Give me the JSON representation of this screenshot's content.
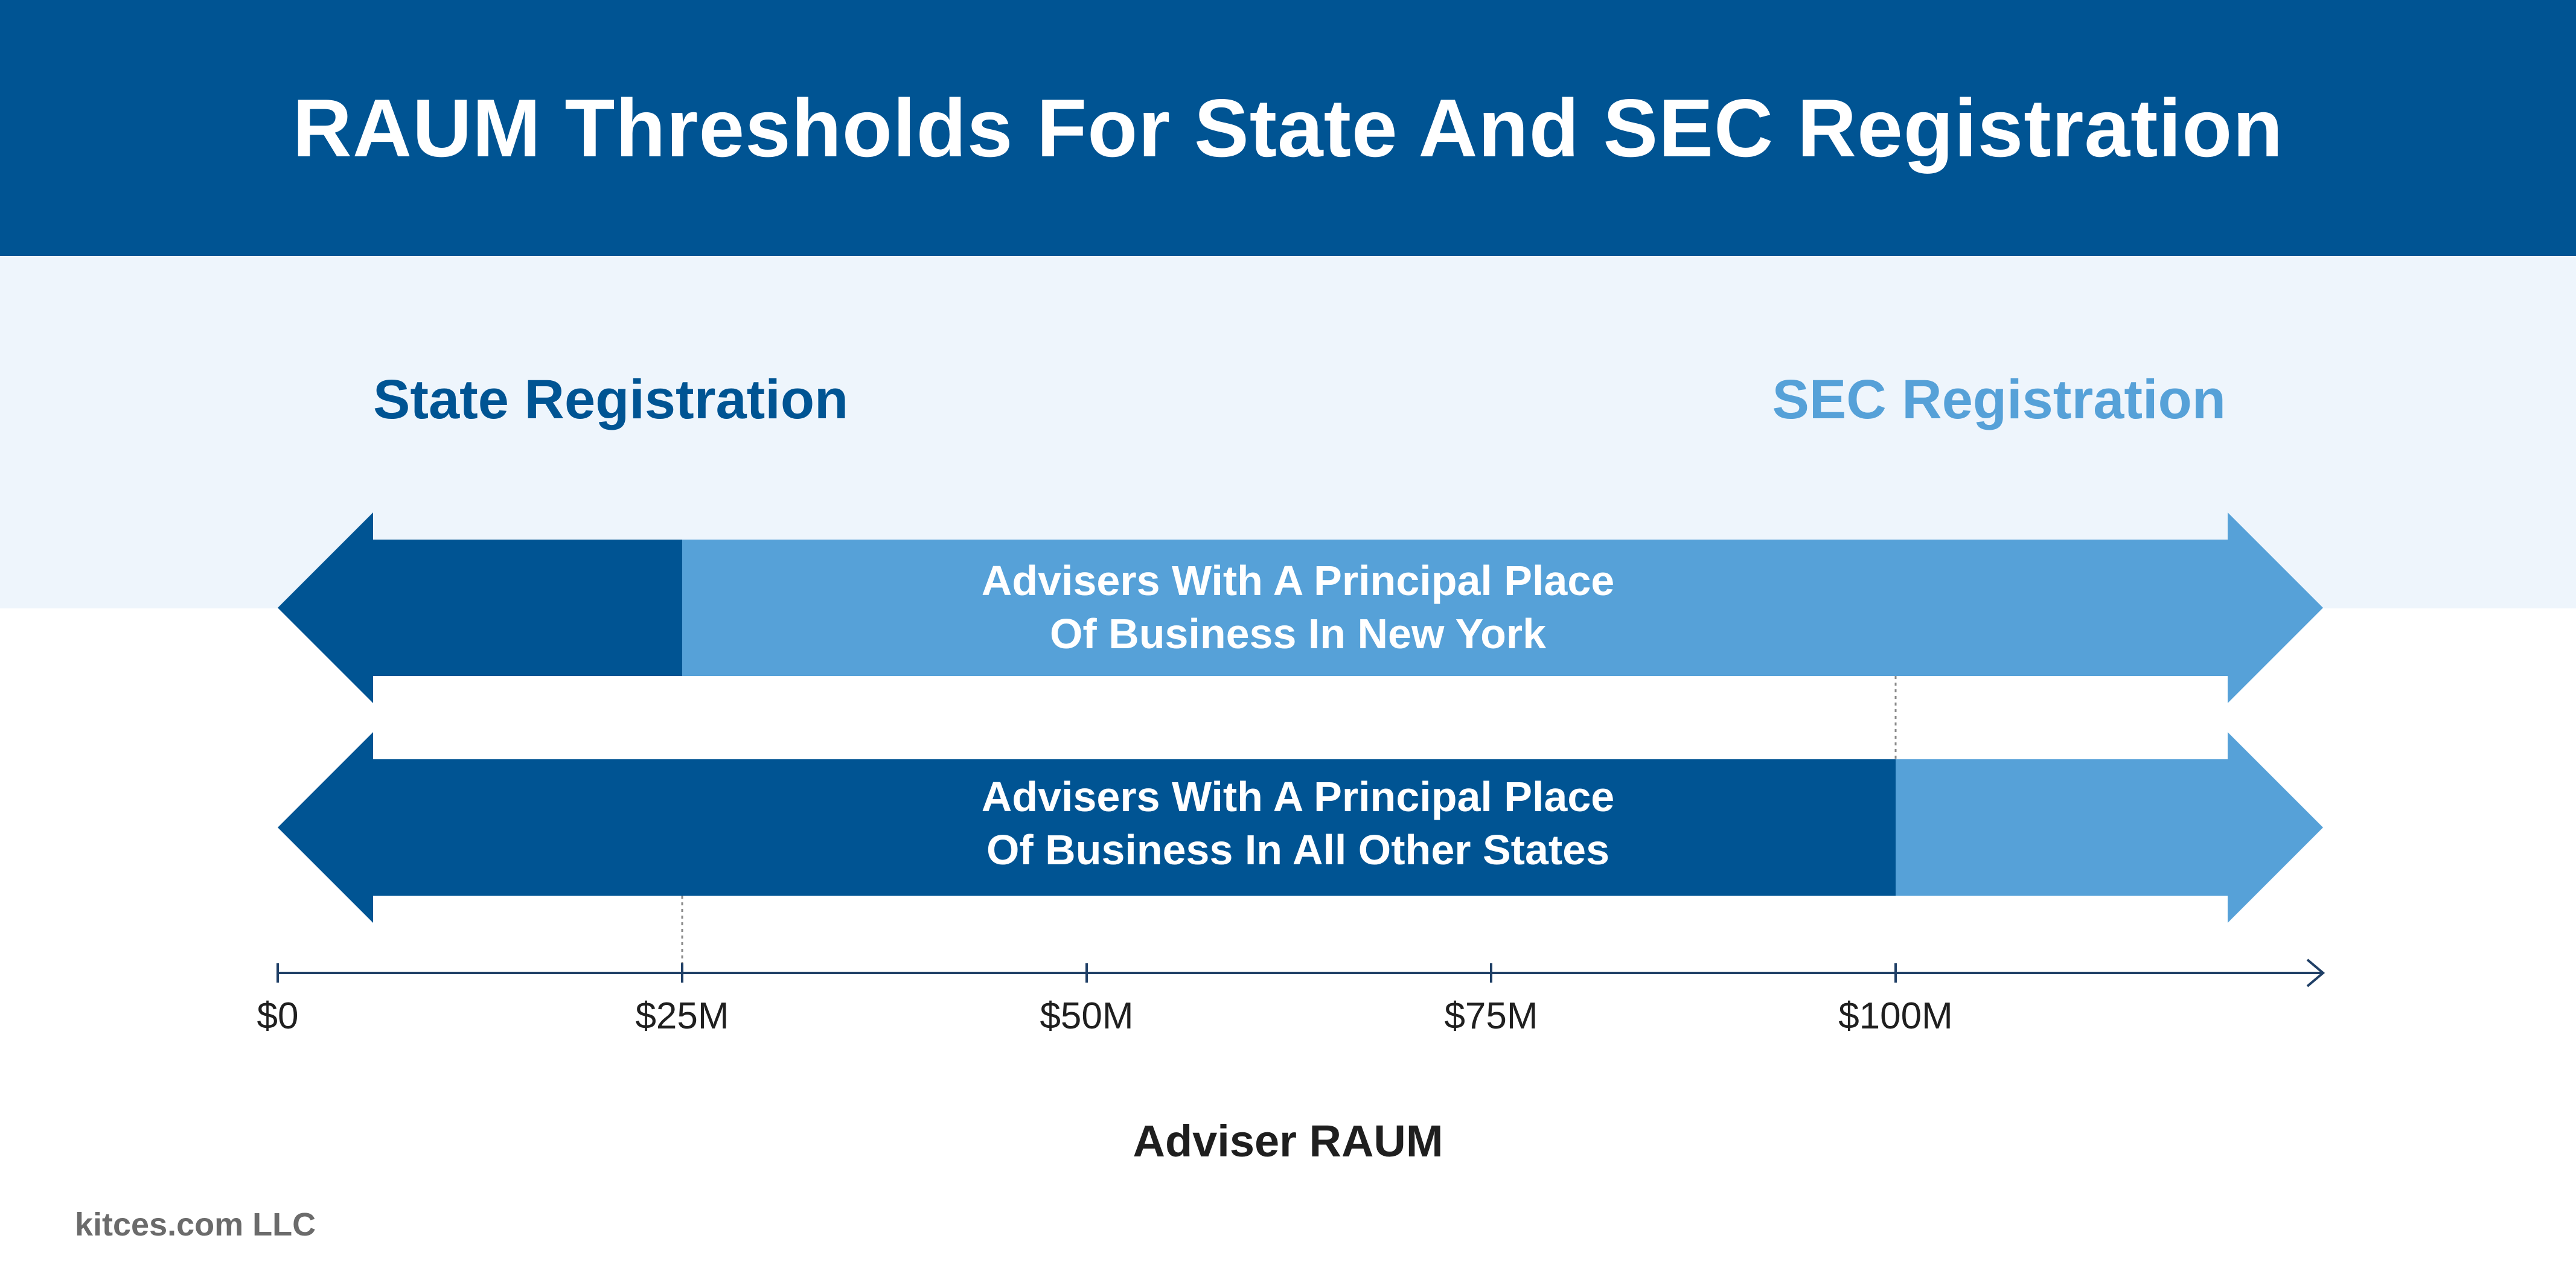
{
  "header": {
    "title": "RAUM Thresholds For State And SEC Registration"
  },
  "registration": {
    "state_label": "State Registration",
    "sec_label": "SEC Registration"
  },
  "rows": [
    {
      "line1": "Advisers With A Principal Place",
      "line2": "Of Business In New York",
      "threshold": 25
    },
    {
      "line1": "Advisers With A Principal Place",
      "line2": "Of Business In All Other States",
      "threshold": 100
    }
  ],
  "axis": {
    "title": "Adviser RAUM",
    "ticks": [
      {
        "value": 0,
        "label": "$0"
      },
      {
        "value": 25,
        "label": "$25M"
      },
      {
        "value": 50,
        "label": "$50M"
      },
      {
        "value": 75,
        "label": "$75M"
      },
      {
        "value": 100,
        "label": "$100M"
      }
    ]
  },
  "credit": "kitces.com LLC",
  "colors": {
    "header_bg": "#005493",
    "band_bg": "#EEF5FC",
    "state_dark": "#005493",
    "sec_light": "#56A1D8",
    "axis_line": "#1F3F66"
  }
}
